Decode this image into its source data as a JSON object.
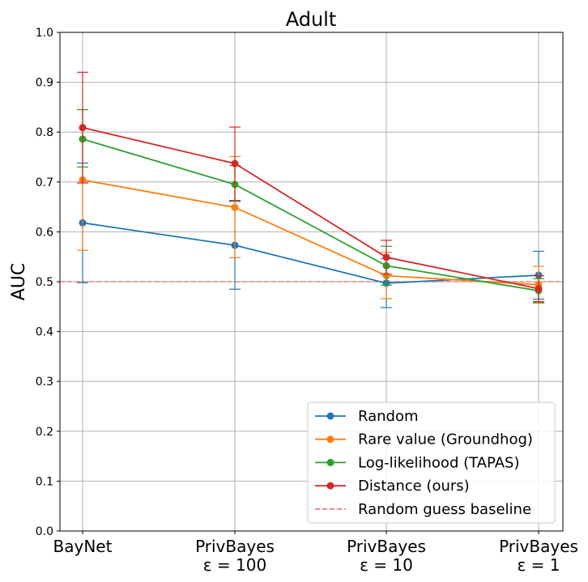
{
  "chart_data": {
    "type": "line",
    "title": "Adult",
    "ylabel": "AUC",
    "xlabel": "",
    "ylim": [
      0.0,
      1.0
    ],
    "yticks": [
      "0.0",
      "0.1",
      "0.2",
      "0.3",
      "0.4",
      "0.5",
      "0.6",
      "0.7",
      "0.8",
      "0.9",
      "1.0"
    ],
    "categories": [
      {
        "line1": "BayNet",
        "line2": ""
      },
      {
        "line1": "PrivBayes",
        "line2": "ε = 100"
      },
      {
        "line1": "PrivBayes",
        "line2": "ε = 10"
      },
      {
        "line1": "PrivBayes",
        "line2": "ε = 1"
      }
    ],
    "grid": true,
    "legend_position": "bottom-right",
    "series": [
      {
        "name": "Random",
        "color": "#1f77b4",
        "values": [
          0.618,
          0.573,
          0.497,
          0.513
        ],
        "err_low": [
          0.498,
          0.485,
          0.448,
          0.465
        ],
        "err_high": [
          0.738,
          0.661,
          0.546,
          0.561
        ]
      },
      {
        "name": "Rare value (Groundhog)",
        "color": "#ff7f0e",
        "values": [
          0.704,
          0.649,
          0.512,
          0.494
        ],
        "err_low": [
          0.563,
          0.548,
          0.466,
          0.457
        ],
        "err_high": [
          0.845,
          0.751,
          0.559,
          0.531
        ]
      },
      {
        "name": "Log-likelihood (TAPAS)",
        "color": "#2ca02c",
        "values": [
          0.786,
          0.695,
          0.532,
          0.482
        ],
        "err_low": [
          0.73,
          0.662,
          0.493,
          0.458
        ],
        "err_high": [
          0.845,
          0.733,
          0.571,
          0.506
        ]
      },
      {
        "name": "Distance (ours)",
        "color": "#d62728",
        "values": [
          0.809,
          0.737,
          0.549,
          0.486
        ],
        "err_low": [
          0.698,
          0.663,
          0.515,
          0.46
        ],
        "err_high": [
          0.92,
          0.81,
          0.583,
          0.512
        ]
      }
    ],
    "baseline": {
      "name": "Random guess baseline",
      "value": 0.5,
      "color": "#f08080"
    }
  }
}
